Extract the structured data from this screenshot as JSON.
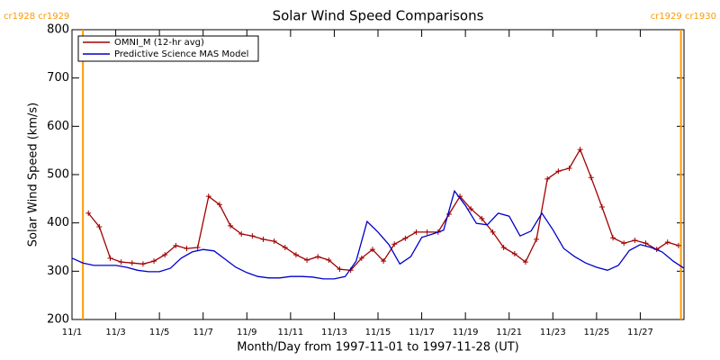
{
  "chart_data": {
    "type": "line",
    "title": "Solar Wind Speed Comparisons",
    "xlabel": "Month/Day from 1997-11-01 to 1997-11-28 (UT)",
    "ylabel": "Solar Wind Speed (km/s)",
    "xlim": [
      0,
      28
    ],
    "xticks": [
      {
        "value": 0,
        "label": "11/1"
      },
      {
        "value": 2,
        "label": "11/3"
      },
      {
        "value": 4,
        "label": "11/5"
      },
      {
        "value": 6,
        "label": "11/7"
      },
      {
        "value": 8,
        "label": "11/9"
      },
      {
        "value": 10,
        "label": "11/11"
      },
      {
        "value": 12,
        "label": "11/13"
      },
      {
        "value": 14,
        "label": "11/15"
      },
      {
        "value": 16,
        "label": "11/17"
      },
      {
        "value": 18,
        "label": "11/19"
      },
      {
        "value": 20,
        "label": "11/21"
      },
      {
        "value": 22,
        "label": "11/23"
      },
      {
        "value": 24,
        "label": "11/25"
      },
      {
        "value": 26,
        "label": "11/27"
      }
    ],
    "ylim": [
      200,
      800
    ],
    "yticks": [
      200,
      300,
      400,
      500,
      600,
      700,
      800
    ],
    "legend": "upper-left",
    "annotations": [
      {
        "text": "cr1928 cr1929",
        "x": 0.5,
        "color": "#ff9900"
      },
      {
        "text": "cr1929 cr1930",
        "x": 27.86,
        "color": "#ff9900"
      }
    ],
    "series": [
      {
        "name": "OMNI_M (12-hr avg)",
        "color": "#a00000",
        "marker": "+",
        "x0": 0.75,
        "dx": 0.5,
        "values": [
          420,
          392,
          327,
          319,
          317,
          315,
          321,
          334,
          353,
          347,
          349,
          455,
          438,
          394,
          377,
          373,
          366,
          362,
          349,
          334,
          323,
          330,
          323,
          304,
          302,
          327,
          345,
          321,
          356,
          368,
          381,
          381,
          381,
          418,
          455,
          429,
          409,
          381,
          349,
          336,
          319,
          366,
          491,
          507,
          513,
          552,
          494,
          433,
          369,
          358,
          364,
          358,
          345,
          360,
          353
        ]
      },
      {
        "name": "Predictive Science MAS Model",
        "color": "#0000cc",
        "x0": 0,
        "dx": 0.5,
        "values": [
          327,
          317,
          312,
          312,
          312,
          308,
          302,
          299,
          299,
          306,
          327,
          340,
          345,
          342,
          325,
          308,
          297,
          289,
          286,
          286,
          289,
          289,
          288,
          284,
          284,
          289,
          321,
          403,
          381,
          355,
          315,
          330,
          370,
          377,
          385,
          466,
          436,
          399,
          396,
          420,
          414,
          373,
          383,
          420,
          386,
          347,
          330,
          317,
          308,
          302,
          312,
          343,
          355,
          349,
          340,
          321,
          306
        ]
      }
    ]
  }
}
